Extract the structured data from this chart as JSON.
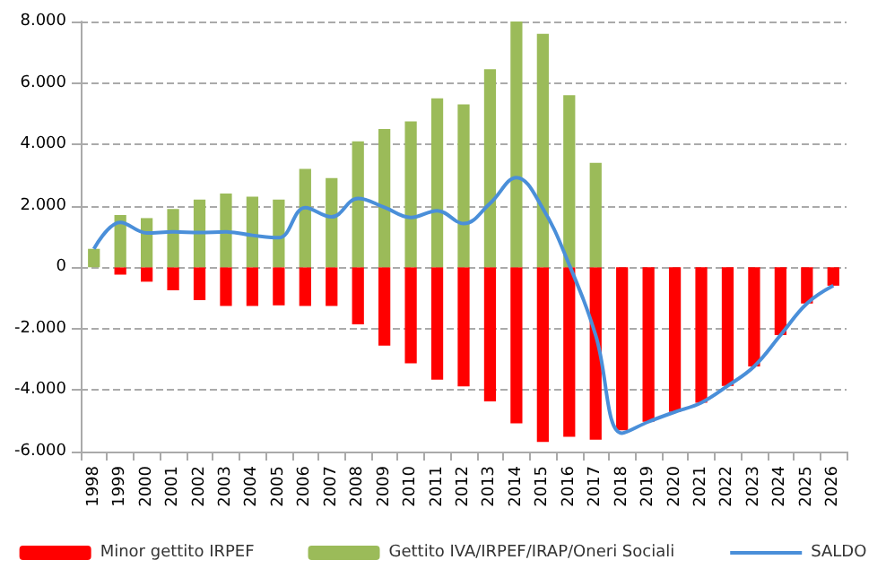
{
  "chart_data": {
    "type": "bar",
    "categories": [
      "1998",
      "1999",
      "2000",
      "2001",
      "2002",
      "2003",
      "2004",
      "2005",
      "2006",
      "2007",
      "2008",
      "2009",
      "2010",
      "2011",
      "2012",
      "2013",
      "2014",
      "2015",
      "2016",
      "2017",
      "2018",
      "2019",
      "2020",
      "2021",
      "2022",
      "2023",
      "2024",
      "2025",
      "2026"
    ],
    "series": [
      {
        "name": "Minor gettito IRPEF",
        "color": "#ff0000",
        "values": [
          null,
          -240,
          -470,
          -750,
          -1070,
          -1260,
          -1260,
          -1240,
          -1260,
          -1260,
          -1860,
          -2550,
          -3130,
          -3660,
          -3880,
          -4370,
          -5080,
          -5690,
          -5520,
          -5610,
          -5310,
          -5030,
          -4710,
          -4410,
          -3860,
          -3230,
          -2210,
          -1180,
          -600
        ]
      },
      {
        "name": "Gettito IVA/IRPEF/IRAP/Oneri Sociali",
        "color": "#9bbb59",
        "values": [
          600,
          1700,
          1600,
          1900,
          2200,
          2400,
          2300,
          2200,
          3200,
          2900,
          4100,
          4500,
          4750,
          5500,
          5300,
          6450,
          8000,
          7600,
          5600,
          3400,
          null,
          null,
          null,
          null,
          null,
          null,
          null,
          null,
          null
        ]
      },
      {
        "name": "SALDO",
        "type": "line",
        "color": "#4a8fd9",
        "values": [
          600,
          1460,
          1120,
          1150,
          1130,
          1150,
          1040,
          960,
          1940,
          1640,
          2240,
          1950,
          1620,
          1840,
          1420,
          2080,
          2920,
          1910,
          80,
          -2210,
          -5400,
          -5030,
          -4710,
          -4410,
          -3860,
          -3230,
          -2210,
          -1180,
          -600
        ]
      }
    ],
    "ylim": [
      -6000,
      8000
    ],
    "yticks": [
      {
        "value": -6000,
        "label": "-6.000"
      },
      {
        "value": -4000,
        "label": "-4.000"
      },
      {
        "value": -2000,
        "label": "-2.000"
      },
      {
        "value": 0,
        "label": "0"
      },
      {
        "value": 2000,
        "label": "2.000"
      },
      {
        "value": 4000,
        "label": "4.000"
      },
      {
        "value": 6000,
        "label": "6.000"
      },
      {
        "value": 8000,
        "label": "8.000"
      }
    ],
    "stacked": true,
    "grid": "y",
    "legend": "bottom",
    "marker": "none",
    "line_style": "solid"
  }
}
